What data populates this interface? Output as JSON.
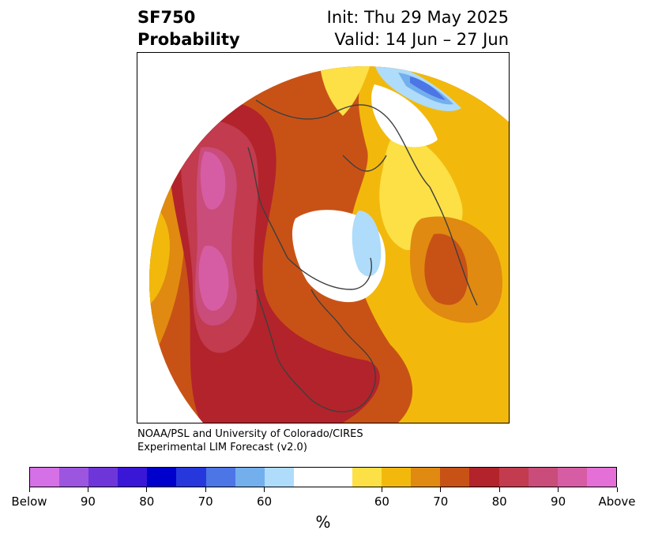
{
  "header": {
    "product": "SF750",
    "field": "Probability",
    "init": "Init: Thu 29 May 2025",
    "valid": "Valid: 14 Jun – 27 Jun"
  },
  "credit": {
    "line1": "NOAA/PSL and University of Colorado/CIRES",
    "line2": "Experimental LIM Forecast (v2.0)"
  },
  "colorbar": {
    "colors": [
      "#d670e6",
      "#9c55df",
      "#6e36d9",
      "#3a16d6",
      "#0000cc",
      "#2638dc",
      "#4c75e6",
      "#73afed",
      "#aedcfa",
      "#ffffff",
      "#ffffff",
      "#fce046",
      "#f2b90c",
      "#e08a11",
      "#c85216",
      "#b3232b",
      "#c23b4e",
      "#c94c7a",
      "#d65da3",
      "#e46fd6"
    ],
    "labels": [
      {
        "text": "Below",
        "index": 0
      },
      {
        "text": "90",
        "index": 2
      },
      {
        "text": "80",
        "index": 4
      },
      {
        "text": "70",
        "index": 6
      },
      {
        "text": "60",
        "index": 8
      },
      {
        "text": "60",
        "index": 12
      },
      {
        "text": "70",
        "index": 14
      },
      {
        "text": "80",
        "index": 16
      },
      {
        "text": "90",
        "index": 18
      },
      {
        "text": "Above",
        "index": 20
      }
    ],
    "unit": "%"
  },
  "map": {
    "projection": "north polar stereographic",
    "region_colors": {
      "outer": "#c85216",
      "above60": "#f2b90c",
      "above55": "#fce046",
      "above70": "#e08a11",
      "above80": "#b3232b",
      "above85": "#c23b4e",
      "above90": "#c94c7a",
      "above95": "#d65da3",
      "below60": "#aedcfa",
      "below70": "#73afed",
      "below80": "#4c75e6",
      "neutral": "#ffffff",
      "coast": "#3f3f3f"
    }
  }
}
